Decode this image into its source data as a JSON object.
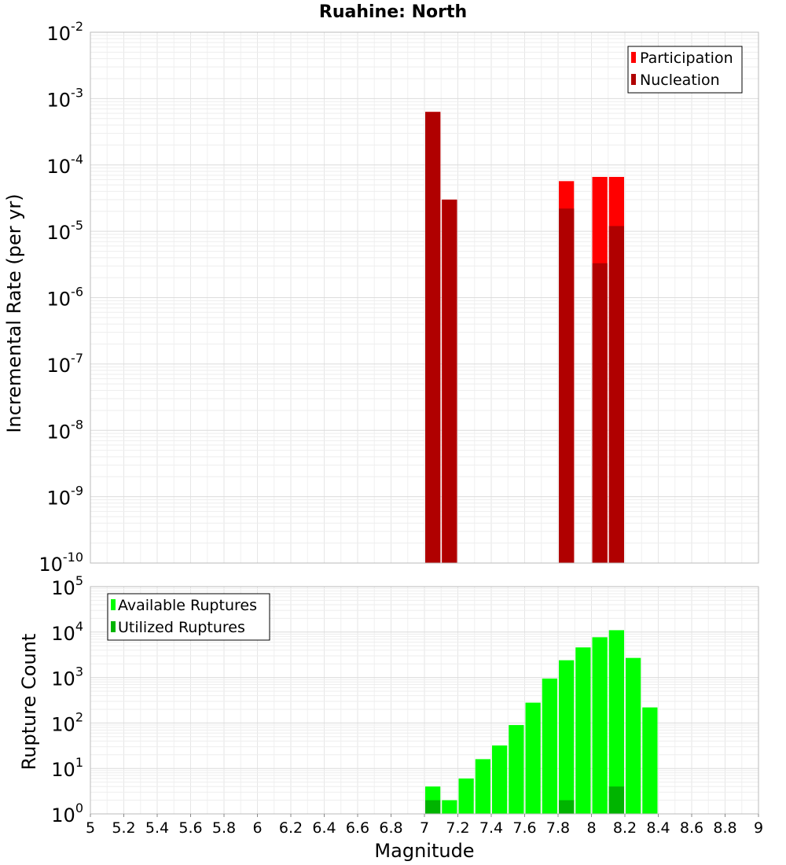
{
  "chart_data": [
    {
      "id": "rate",
      "type": "bar",
      "title": "Ruahine: North",
      "ylabel": "Incremental Rate (per yr)",
      "xlabel": "",
      "yscale": "log",
      "xlim": [
        5,
        9
      ],
      "ylim_exponents": [
        -10,
        -2
      ],
      "grid": true,
      "legend_position": "top-right",
      "bin_width": 0.1,
      "series": [
        {
          "name": "Participation",
          "color": "#ff0000",
          "bins": [
            7.05,
            7.15,
            7.85,
            8.05,
            8.15
          ],
          "values": [
            0.00063,
            3e-05,
            5.7e-05,
            6.6e-05,
            6.6e-05
          ]
        },
        {
          "name": "Nucleation",
          "color": "#b00000",
          "bins": [
            7.05,
            7.15,
            7.85,
            8.05,
            8.15
          ],
          "values": [
            0.00063,
            3e-05,
            2.2e-05,
            3.3e-06,
            1.2e-05
          ]
        }
      ]
    },
    {
      "id": "counts",
      "type": "bar",
      "title": "",
      "ylabel": "Rupture Count",
      "xlabel": "Magnitude",
      "yscale": "log",
      "xlim": [
        5,
        9
      ],
      "ylim_exponents": [
        0,
        5
      ],
      "grid": true,
      "legend_position": "top-left",
      "bin_width": 0.1,
      "series": [
        {
          "name": "Available Ruptures",
          "color": "#00ff00",
          "bins": [
            7.05,
            7.15,
            7.25,
            7.35,
            7.45,
            7.55,
            7.65,
            7.75,
            7.85,
            7.95,
            8.05,
            8.15,
            8.25,
            8.35
          ],
          "values": [
            4,
            2,
            6,
            16,
            32,
            90,
            280,
            950,
            2400,
            4600,
            7700,
            11000,
            2700,
            220
          ]
        },
        {
          "name": "Utilized Ruptures",
          "color": "#00b400",
          "bins": [
            7.05,
            7.15,
            7.85,
            8.05,
            8.15
          ],
          "values": [
            2,
            1,
            2,
            1,
            4
          ]
        }
      ]
    }
  ],
  "x_ticks": [
    "5",
    "5.2",
    "5.4",
    "5.6",
    "5.8",
    "6",
    "6.2",
    "6.4",
    "6.6",
    "6.8",
    "7",
    "7.2",
    "7.4",
    "7.6",
    "7.8",
    "8",
    "8.2",
    "8.4",
    "8.6",
    "8.8",
    "9"
  ]
}
